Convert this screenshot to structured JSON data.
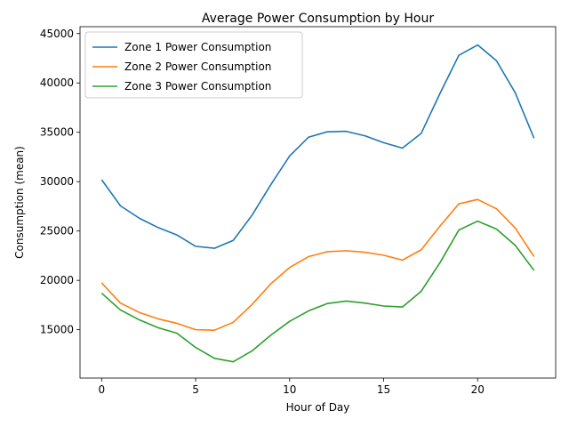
{
  "chart_data": {
    "type": "line",
    "title": "Average Power Consumption by Hour",
    "xlabel": "Hour of Day",
    "ylabel": "Consumption (mean)",
    "x": [
      0,
      1,
      2,
      3,
      4,
      5,
      6,
      7,
      8,
      9,
      10,
      11,
      12,
      13,
      14,
      15,
      16,
      17,
      18,
      19,
      20,
      21,
      22,
      23
    ],
    "xlim": [
      -1.15,
      24.15
    ],
    "ylim": [
      10100,
      45700
    ],
    "xticks": [
      0,
      5,
      10,
      15,
      20
    ],
    "yticks": [
      15000,
      20000,
      25000,
      30000,
      35000,
      40000,
      45000
    ],
    "grid": false,
    "legend": "upper-left",
    "series": [
      {
        "name": "Zone 1 Power Consumption",
        "color": "#1f77b4",
        "values": [
          30200,
          27550,
          26300,
          25350,
          24600,
          23450,
          23250,
          24050,
          26600,
          29700,
          32600,
          34500,
          35050,
          35100,
          34650,
          33950,
          33400,
          34900,
          38950,
          42800,
          43850,
          42250,
          39000,
          34400
        ]
      },
      {
        "name": "Zone 2  Power Consumption",
        "color": "#ff7f0e",
        "values": [
          19750,
          17700,
          16750,
          16100,
          15650,
          15000,
          14950,
          15750,
          17550,
          19650,
          21300,
          22400,
          22900,
          23000,
          22850,
          22550,
          22050,
          23100,
          25500,
          27750,
          28200,
          27250,
          25300,
          22400
        ]
      },
      {
        "name": "Zone 3  Power Consumption",
        "color": "#2ca02c",
        "values": [
          18700,
          17000,
          16000,
          15200,
          14650,
          13200,
          12100,
          11750,
          12850,
          14450,
          15850,
          16900,
          17650,
          17900,
          17700,
          17400,
          17300,
          18900,
          21800,
          25100,
          26000,
          25200,
          23550,
          21000
        ]
      }
    ]
  }
}
